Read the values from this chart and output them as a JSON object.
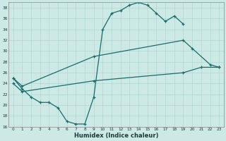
{
  "background_color": "#cce9e5",
  "grid_color": "#b0d8d4",
  "line_color": "#1a6b6b",
  "xlabel": "Humidex (Indice chaleur)",
  "xlim": [
    -0.5,
    23.5
  ],
  "ylim": [
    16,
    39
  ],
  "ytick_values": [
    16,
    18,
    20,
    22,
    24,
    26,
    28,
    30,
    32,
    34,
    36,
    38
  ],
  "line1_x": [
    0,
    1,
    2,
    3,
    4,
    5,
    6,
    7,
    8,
    9,
    10,
    11,
    12,
    13,
    14,
    15,
    16,
    17,
    18,
    19
  ],
  "line1_y": [
    25,
    23,
    21.5,
    20.5,
    20.5,
    19.5,
    17,
    16.5,
    16.5,
    21.5,
    34,
    37,
    37.5,
    38.5,
    39,
    38.5,
    37,
    35.5,
    36.5,
    35
  ],
  "line2_x": [
    0,
    1,
    9,
    19,
    20,
    22,
    23
  ],
  "line2_y": [
    25,
    23.5,
    29,
    32,
    30.5,
    27.5,
    27
  ],
  "line3_x": [
    0,
    1,
    9,
    19,
    21,
    23
  ],
  "line3_y": [
    24,
    22.5,
    24.5,
    26,
    27,
    27
  ]
}
